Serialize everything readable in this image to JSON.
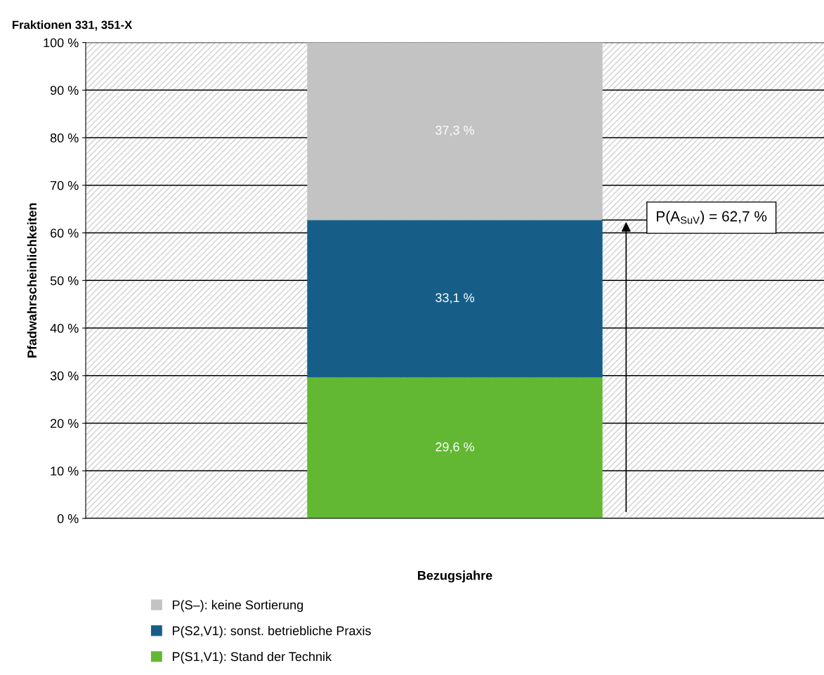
{
  "chart_data": {
    "type": "bar",
    "stacked": true,
    "title": "Fraktionen 331, 351-X",
    "xlabel": "Bezugsjahre",
    "ylabel": "Pfadwahrscheinlichkeiten",
    "categories": [
      null
    ],
    "series": [
      {
        "name": "P(S1,V1): Stand der Technik",
        "color": "#62b832",
        "values": [
          29.6
        ],
        "value_labels": [
          "29,6 %"
        ]
      },
      {
        "name": "P(S2,V1): sonst. betriebliche Praxis",
        "color": "#165e88",
        "values": [
          33.1
        ],
        "value_labels": [
          "33,1 %"
        ]
      },
      {
        "name": "P(S–): keine Sortierung",
        "color": "#c2c3c2",
        "values": [
          37.3
        ],
        "value_labels": [
          "37,3 %"
        ]
      }
    ],
    "ylim": [
      0,
      100
    ],
    "yticks": [
      {
        "value": 0,
        "label": "0 %"
      },
      {
        "value": 10,
        "label": "10 %"
      },
      {
        "value": 20,
        "label": "20 %"
      },
      {
        "value": 30,
        "label": "30 %"
      },
      {
        "value": 40,
        "label": "40 %"
      },
      {
        "value": 50,
        "label": "50 %"
      },
      {
        "value": 60,
        "label": "60 %"
      },
      {
        "value": 70,
        "label": "70 %"
      },
      {
        "value": 80,
        "label": "80 %"
      },
      {
        "value": 90,
        "label": "90 %"
      },
      {
        "value": 100,
        "label": "100 %"
      }
    ],
    "grid": "y",
    "legend": "bottom",
    "annotations": [
      "P(A$_{SuV}$) = 62,7 %"
    ]
  }
}
